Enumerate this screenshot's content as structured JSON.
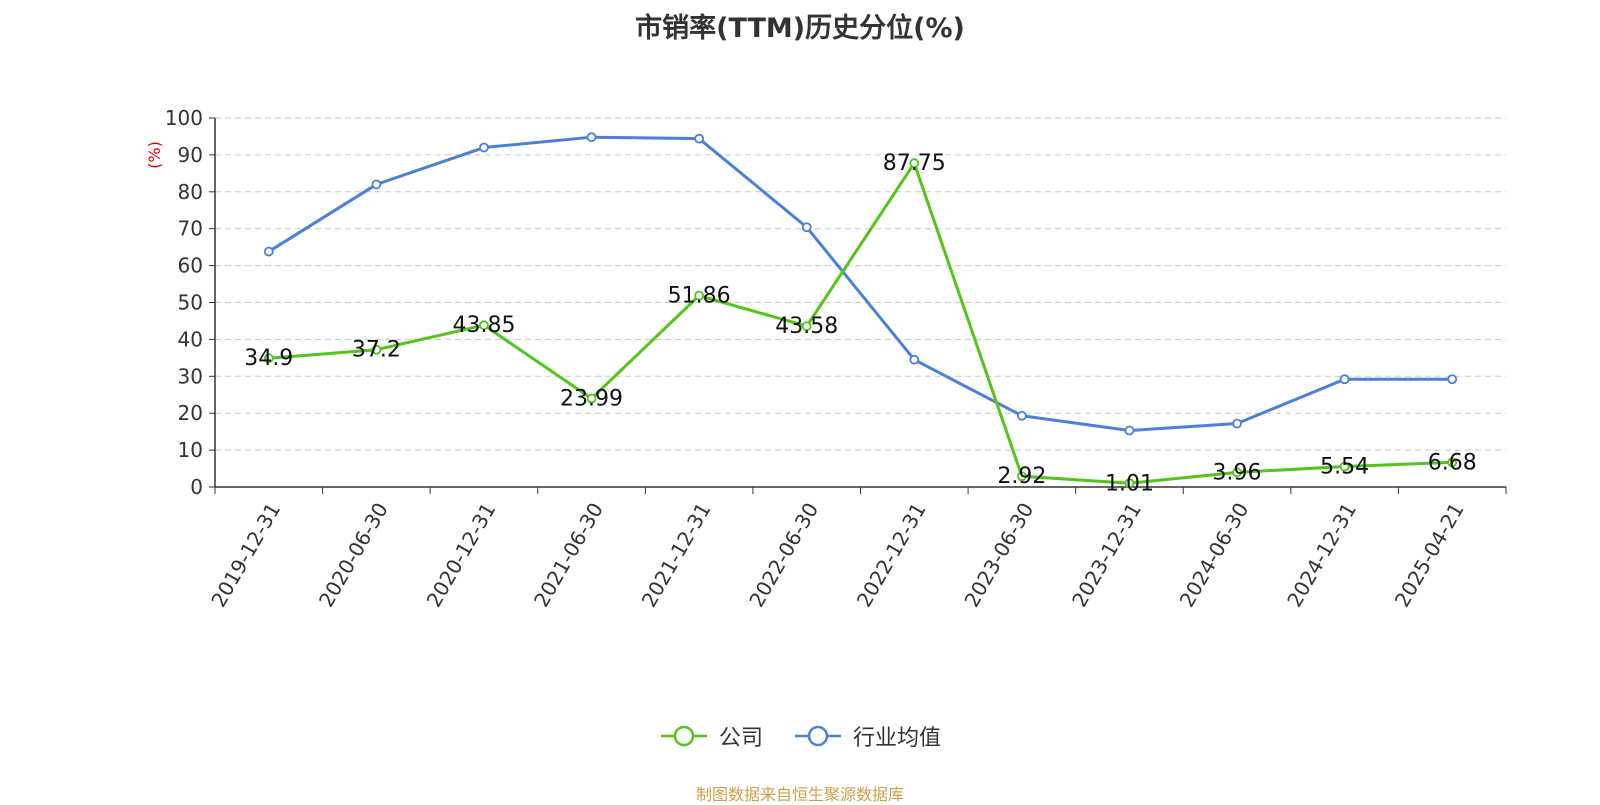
{
  "title": "市销率(TTM)历史分位(%)",
  "source": "制图数据来自恒生聚源数据库",
  "chart_data": {
    "type": "line",
    "title": "市销率(TTM)历史分位(%)",
    "ylabel": "(%)",
    "xlabel": "",
    "ylim": [
      0,
      100
    ],
    "yticks": [
      0,
      10,
      20,
      30,
      40,
      50,
      60,
      70,
      80,
      90,
      100
    ],
    "categories": [
      "2019-12-31",
      "2020-06-30",
      "2020-12-31",
      "2021-06-30",
      "2021-12-31",
      "2022-06-30",
      "2022-12-31",
      "2023-06-30",
      "2023-12-31",
      "2024-06-30",
      "2024-12-31",
      "2025-04-21"
    ],
    "grid": "horizontal dashed",
    "legend_position": "bottom-center",
    "series": [
      {
        "name": "公司",
        "color": "#52c41a",
        "show_labels": true,
        "values": [
          34.9,
          37.2,
          43.85,
          23.99,
          51.86,
          43.58,
          87.75,
          2.92,
          1.01,
          3.96,
          5.54,
          6.68
        ]
      },
      {
        "name": "行业均值",
        "color": "#4a7fdb",
        "show_labels": false,
        "values": [
          63.8,
          82.0,
          92.0,
          94.8,
          94.4,
          70.4,
          34.5,
          19.3,
          15.3,
          17.2,
          29.2,
          29.2
        ]
      }
    ]
  }
}
